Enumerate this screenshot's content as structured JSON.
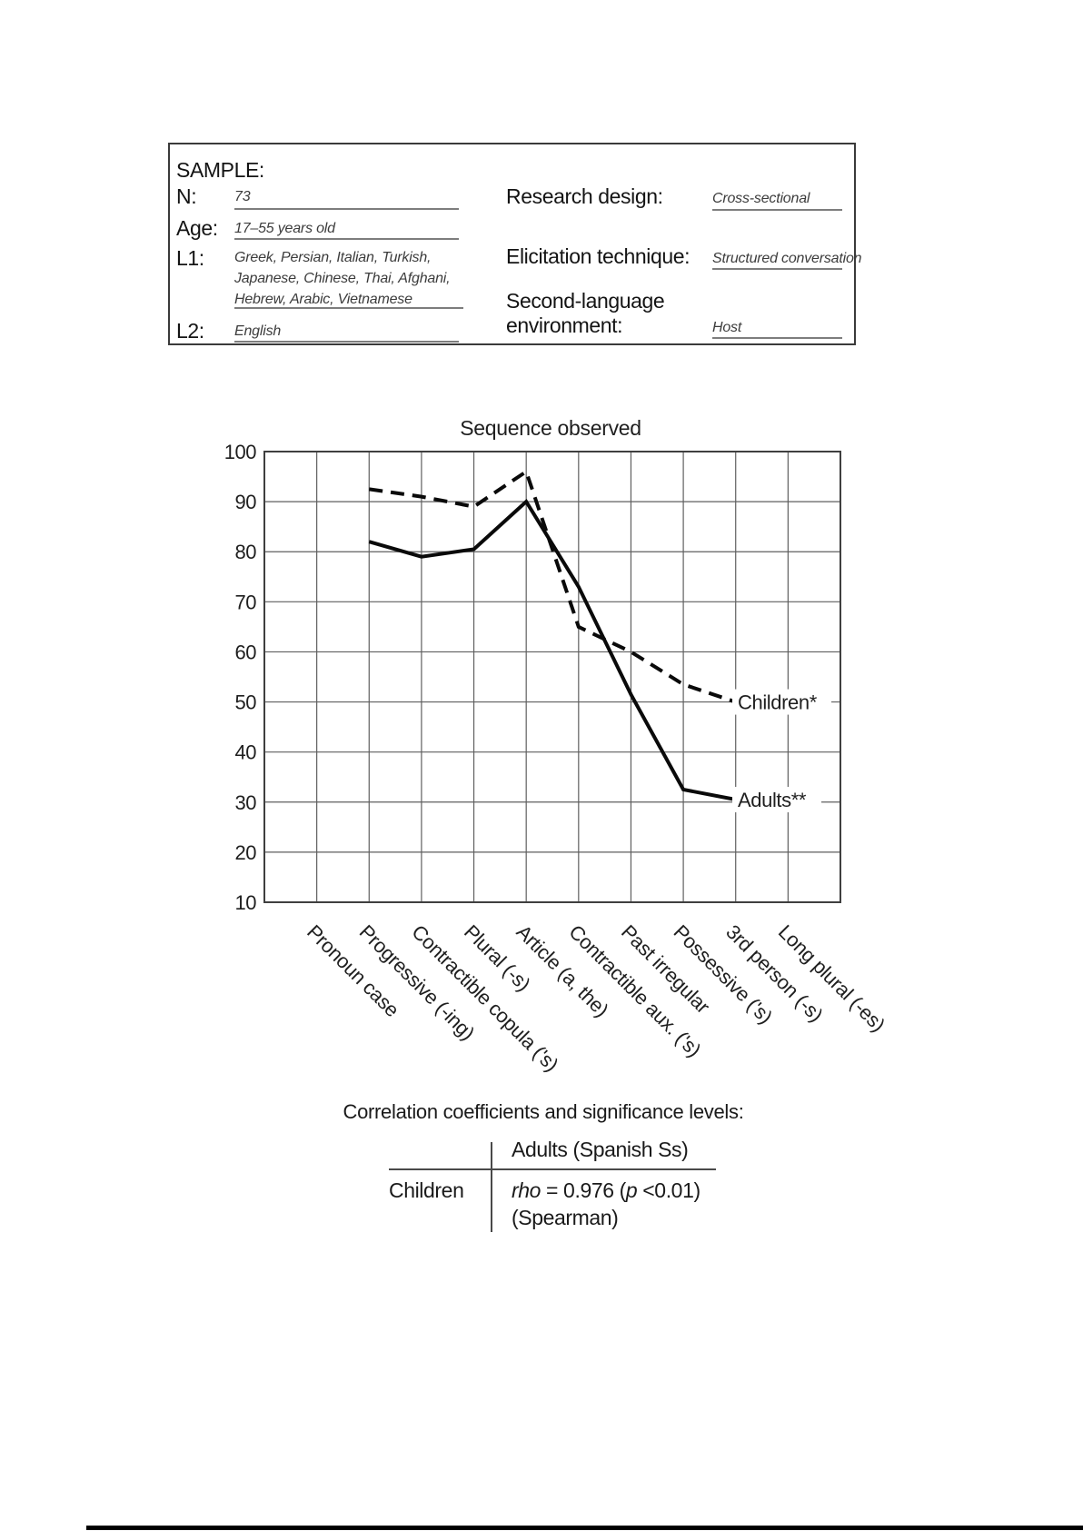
{
  "sample_box": {
    "title": "SAMPLE:",
    "fields_left": [
      {
        "label": "N:",
        "value": "73"
      },
      {
        "label": "Age:",
        "value": "17–55 years old"
      },
      {
        "label": "L1:",
        "value": "Greek, Persian, Italian, Turkish, Japanese, Chinese, Thai, Afghani, Hebrew, Arabic, Vietnamese"
      },
      {
        "label": "L2:",
        "value": "English"
      }
    ],
    "fields_right": [
      {
        "label": "Research design:",
        "value": "Cross-sectional"
      },
      {
        "label": "Elicitation technique:",
        "value": "Structured conversation"
      },
      {
        "label": "Second-language environment:",
        "value": "Host"
      }
    ]
  },
  "chart_data": {
    "type": "line",
    "title": "Sequence observed",
    "categories": [
      "Pronoun case",
      "Progressive (-ing)",
      "Contractible copula ('s)",
      "Plural (-s)",
      "Article (a, the)",
      "Contractible aux. ('s)",
      "Past irregular",
      "Possessive ('s)",
      "3rd person (-s)",
      "Long plural (-es)"
    ],
    "series": [
      {
        "name": "Children*",
        "line_style": "dashed",
        "values": [
          null,
          92.5,
          91,
          89,
          96,
          65,
          60,
          53.5,
          50,
          null
        ]
      },
      {
        "name": "Adults**",
        "line_style": "solid",
        "values": [
          null,
          82,
          79,
          80.5,
          90,
          73,
          51.5,
          32.5,
          30.5,
          null
        ]
      }
    ],
    "ylim": [
      10,
      100
    ],
    "yticks": [
      100,
      90,
      80,
      70,
      60,
      50,
      40,
      30,
      20,
      10
    ],
    "grid": true,
    "legend_position": "right-of-last-point"
  },
  "correlation_table": {
    "heading": "Correlation coefficients and significance levels:",
    "col_header": "Adults (Spanish Ss)",
    "row_header": "Children",
    "cell": {
      "rho_word": "rho",
      "mid": " = 0.976 (",
      "p_word": "p",
      "tail": " <0.01)",
      "line2": "(Spearman)"
    }
  }
}
